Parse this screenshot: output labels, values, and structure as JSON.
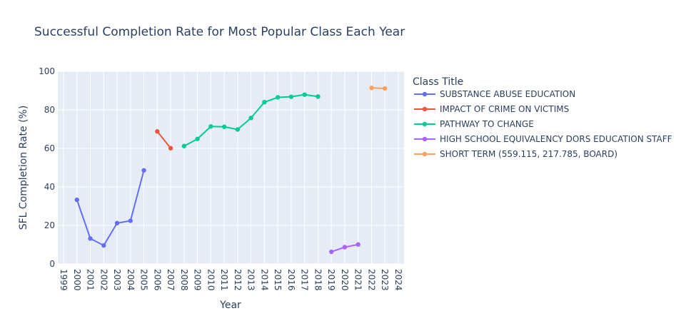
{
  "chart_data": {
    "type": "line",
    "title": "Successful Completion Rate for Most Popular Class Each Year",
    "xlabel": "Year",
    "ylabel": "SFL Completion Rate (%)",
    "xlim": [
      1999,
      2024
    ],
    "ylim": [
      0,
      100
    ],
    "x_ticks": [
      1999,
      2000,
      2001,
      2002,
      2003,
      2004,
      2005,
      2006,
      2007,
      2008,
      2009,
      2010,
      2011,
      2012,
      2013,
      2014,
      2015,
      2016,
      2017,
      2018,
      2019,
      2020,
      2021,
      2022,
      2023,
      2024
    ],
    "y_ticks": [
      0,
      20,
      40,
      60,
      80,
      100
    ],
    "grid": true,
    "legend": {
      "title": "Class Title",
      "position": "right"
    },
    "series": [
      {
        "name": "SUBSTANCE ABUSE EDUCATION",
        "color": "#636efa",
        "points": [
          [
            2000,
            33.3
          ],
          [
            2001,
            13.2
          ],
          [
            2002,
            9.6
          ],
          [
            2003,
            21.2
          ],
          [
            2004,
            22.4
          ],
          [
            2005,
            48.6
          ]
        ]
      },
      {
        "name": "IMPACT OF CRIME ON VICTIMS",
        "color": "#ef553b",
        "points": [
          [
            2006,
            68.8
          ],
          [
            2007,
            60.1
          ]
        ]
      },
      {
        "name": "PATHWAY TO CHANGE",
        "color": "#00cc96",
        "points": [
          [
            2008,
            61.2
          ],
          [
            2009,
            64.9
          ],
          [
            2010,
            71.4
          ],
          [
            2011,
            71.2
          ],
          [
            2012,
            69.8
          ],
          [
            2013,
            75.8
          ],
          [
            2014,
            84.0
          ],
          [
            2015,
            86.5
          ],
          [
            2016,
            86.8
          ],
          [
            2017,
            87.9
          ],
          [
            2018,
            86.9
          ]
        ]
      },
      {
        "name": "HIGH SCHOOL EQUIVALENCY DORS EDUCATION STAFF",
        "color": "#ab63fa",
        "points": [
          [
            2019,
            6.3
          ],
          [
            2020,
            8.7
          ],
          [
            2021,
            10.1
          ]
        ]
      },
      {
        "name": "SHORT TERM (559.115, 217.785, BOARD)",
        "color": "#ffa15a",
        "points": [
          [
            2022,
            91.4
          ],
          [
            2023,
            91.1
          ]
        ]
      }
    ]
  }
}
